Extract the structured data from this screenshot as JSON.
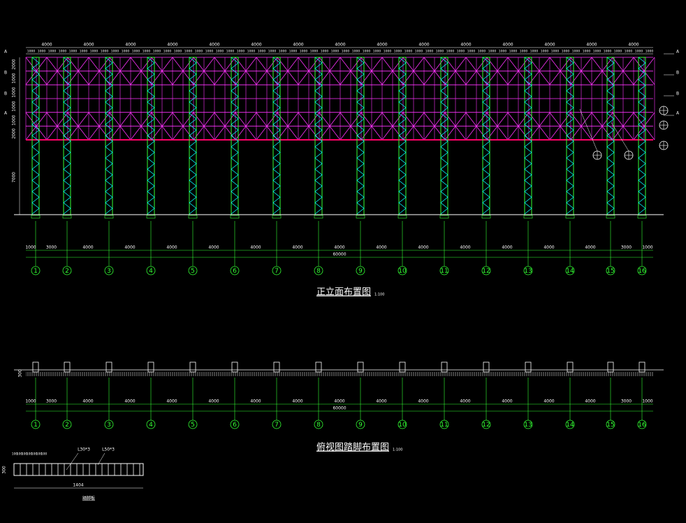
{
  "elevation": {
    "title": "正立面布置图",
    "scale": "1:100",
    "bay_dims": [
      "4000",
      "4000",
      "4000",
      "4000",
      "4000",
      "4000",
      "4000",
      "4000",
      "4000",
      "4000",
      "4000",
      "4000",
      "4000",
      "4000",
      "4000"
    ],
    "module_dim": "1000",
    "left_dims": [
      "2000",
      "1000",
      "1000",
      "1000",
      "1000",
      "2000",
      "7000"
    ],
    "level_marks": [
      "A",
      "B",
      "B",
      "A"
    ]
  },
  "axes": {
    "labels": [
      "1",
      "2",
      "3",
      "4",
      "5",
      "6",
      "7",
      "8",
      "9",
      "10",
      "11",
      "12",
      "13",
      "14",
      "15",
      "16"
    ],
    "dims": [
      "1000",
      "3000",
      "4000",
      "4000",
      "4000",
      "4000",
      "4000",
      "4000",
      "4000",
      "4000",
      "4000",
      "4000",
      "4000",
      "4000",
      "4000",
      "3000",
      "1000"
    ],
    "total": "60000"
  },
  "plan": {
    "title": "俯视图踏脚布置图",
    "scale": "1:100",
    "height": "300"
  },
  "detail": {
    "title": "踏脚板",
    "labels": [
      "L30*3",
      "L50*3"
    ],
    "width": "1404",
    "height": "300",
    "spacing": "100"
  }
}
